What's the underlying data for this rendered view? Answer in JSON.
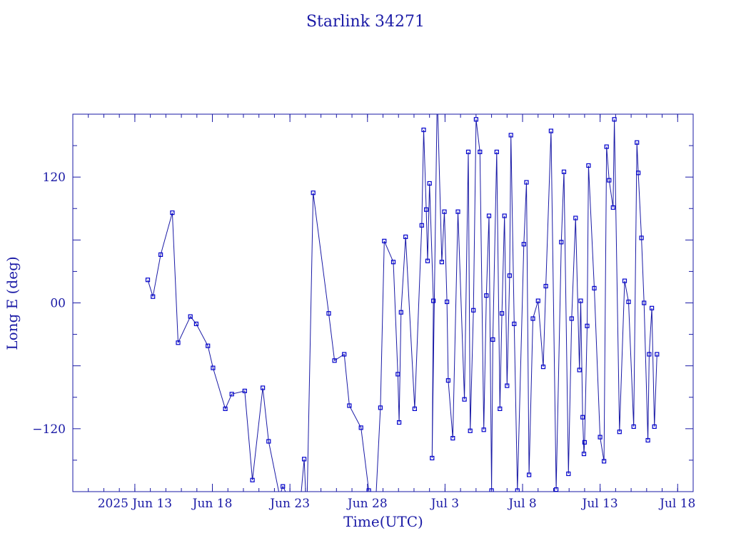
{
  "colors": {
    "axis": "#1a1aa6",
    "line": "#1a1aa6",
    "marker": "#0000cc",
    "background": "#ffffff"
  },
  "chart_data": {
    "type": "line",
    "title": "Starlink 34271",
    "xlabel": "Time(UTC)",
    "ylabel": "Long E (deg)",
    "x_unit": "date",
    "xlim": [
      "2025-06-09T00:00",
      "2025-07-19T00:00"
    ],
    "ylim": [
      -180,
      180
    ],
    "x_ticks": [
      {
        "x": "2025-06-13T00:00",
        "label": "2025 Jun 13"
      },
      {
        "x": "2025-06-18T00:00",
        "label": "Jun 18"
      },
      {
        "x": "2025-06-23T00:00",
        "label": "Jun 23"
      },
      {
        "x": "2025-06-28T00:00",
        "label": "Jun 28"
      },
      {
        "x": "2025-07-03T00:00",
        "label": "Jul 3"
      },
      {
        "x": "2025-07-08T00:00",
        "label": "Jul 8"
      },
      {
        "x": "2025-07-13T00:00",
        "label": "Jul 13"
      },
      {
        "x": "2025-07-18T00:00",
        "label": "Jul 18"
      }
    ],
    "y_ticks": [
      {
        "y": 120,
        "label": "120"
      },
      {
        "y": 0,
        "label": "00"
      },
      {
        "y": -120,
        "label": "−120"
      }
    ],
    "grid": false,
    "markers": "open squares",
    "series": [
      {
        "points": [
          [
            "2025-06-13T20:00",
            22
          ],
          [
            "2025-06-14T04:00",
            6
          ],
          [
            "2025-06-14T16:00",
            46
          ],
          [
            "2025-06-15T10:00",
            86
          ],
          [
            "2025-06-15T19:00",
            -38
          ],
          [
            "2025-06-16T14:00",
            -13
          ],
          [
            "2025-06-16T23:00",
            -20
          ],
          [
            "2025-06-17T17:00",
            -41
          ],
          [
            "2025-06-18T01:00",
            -62
          ],
          [
            "2025-06-18T20:00",
            -101
          ],
          [
            "2025-06-19T06:00",
            -87
          ],
          [
            "2025-06-20T02:00",
            -84
          ],
          [
            "2025-06-20T14:00",
            -169
          ],
          [
            "2025-06-21T06:00",
            -81
          ],
          [
            "2025-06-21T15:00",
            -132
          ],
          [
            "2025-06-22T08:00",
            -184
          ],
          [
            "2025-06-22T13:00",
            -175
          ],
          [
            "2025-06-23T14:00",
            -205
          ],
          [
            "2025-06-23T22:00",
            -149
          ],
          [
            "2025-06-24T02:00",
            -205
          ],
          [
            "2025-06-24T12:00",
            105
          ],
          [
            "2025-06-25T12:00",
            -10
          ],
          [
            "2025-06-25T21:00",
            -55
          ],
          [
            "2025-06-26T12:00",
            -49
          ],
          [
            "2025-06-26T20:00",
            -98
          ],
          [
            "2025-06-27T14:00",
            -119
          ],
          [
            "2025-06-28T02:00",
            -179
          ],
          [
            "2025-06-28T12:00",
            -200
          ],
          [
            "2025-06-28T20:00",
            -100
          ],
          [
            "2025-06-29T02:00",
            59
          ],
          [
            "2025-06-29T16:00",
            39
          ],
          [
            "2025-06-29T23:00",
            -68
          ],
          [
            "2025-06-30T01:00",
            -114
          ],
          [
            "2025-06-30T04:00",
            -9
          ],
          [
            "2025-06-30T11:00",
            63
          ],
          [
            "2025-07-01T01:00",
            -101
          ],
          [
            "2025-07-01T12:00",
            74
          ],
          [
            "2025-07-01T15:00",
            165
          ],
          [
            "2025-07-01T19:00",
            89
          ],
          [
            "2025-07-01T21:00",
            40
          ],
          [
            "2025-07-02T00:00",
            114
          ],
          [
            "2025-07-02T06:00",
            2
          ],
          [
            "2025-07-02T04:00",
            -148
          ],
          [
            "2025-07-02T12:00",
            200
          ],
          [
            "2025-07-02T19:00",
            39
          ],
          [
            "2025-07-02T23:00",
            87
          ],
          [
            "2025-07-03T03:00",
            1
          ],
          [
            "2025-07-03T05:00",
            -74
          ],
          [
            "2025-07-03T12:00",
            -129
          ],
          [
            "2025-07-03T20:00",
            87
          ],
          [
            "2025-07-04T06:00",
            -92
          ],
          [
            "2025-07-04T12:00",
            144
          ],
          [
            "2025-07-04T15:00",
            -122
          ],
          [
            "2025-07-04T20:00",
            -7
          ],
          [
            "2025-07-05T00:00",
            175
          ],
          [
            "2025-07-05T06:00",
            144
          ],
          [
            "2025-07-05T12:00",
            -121
          ],
          [
            "2025-07-05T16:00",
            7
          ],
          [
            "2025-07-05T20:00",
            83
          ],
          [
            "2025-07-06T00:00",
            -179
          ],
          [
            "2025-07-06T02:00",
            -35
          ],
          [
            "2025-07-06T08:00",
            144
          ],
          [
            "2025-07-06T13:00",
            -101
          ],
          [
            "2025-07-06T16:00",
            -10
          ],
          [
            "2025-07-06T20:00",
            83
          ],
          [
            "2025-07-07T00:00",
            -79
          ],
          [
            "2025-07-07T04:00",
            26
          ],
          [
            "2025-07-07T06:00",
            160
          ],
          [
            "2025-07-07T11:00",
            -20
          ],
          [
            "2025-07-07T16:00",
            -179
          ],
          [
            "2025-07-08T02:00",
            56
          ],
          [
            "2025-07-08T06:00",
            115
          ],
          [
            "2025-07-08T10:00",
            -164
          ],
          [
            "2025-07-08T16:00",
            -15
          ],
          [
            "2025-07-09T00:00",
            2
          ],
          [
            "2025-07-09T08:00",
            -61
          ],
          [
            "2025-07-09T12:00",
            16
          ],
          [
            "2025-07-09T20:00",
            164
          ],
          [
            "2025-07-10T04:00",
            -178
          ],
          [
            "2025-07-10T12:00",
            58
          ],
          [
            "2025-07-10T16:00",
            125
          ],
          [
            "2025-07-10T23:00",
            -163
          ],
          [
            "2025-07-11T04:00",
            -15
          ],
          [
            "2025-07-11T10:00",
            81
          ],
          [
            "2025-07-11T16:00",
            -64
          ],
          [
            "2025-07-11T18:00",
            2
          ],
          [
            "2025-07-11T21:00",
            -109
          ],
          [
            "2025-07-11T23:00",
            -144
          ],
          [
            "2025-07-12T00:00",
            -133
          ],
          [
            "2025-07-12T04:00",
            -22
          ],
          [
            "2025-07-12T06:00",
            131
          ],
          [
            "2025-07-12T15:00",
            14
          ],
          [
            "2025-07-13T00:00",
            -128
          ],
          [
            "2025-07-13T06:00",
            -151
          ],
          [
            "2025-07-13T10:00",
            149
          ],
          [
            "2025-07-13T14:00",
            117
          ],
          [
            "2025-07-13T20:00",
            91
          ],
          [
            "2025-07-13T22:00",
            175
          ],
          [
            "2025-07-14T06:00",
            -123
          ],
          [
            "2025-07-14T14:00",
            21
          ],
          [
            "2025-07-14T20:00",
            1
          ],
          [
            "2025-07-15T04:00",
            -118
          ],
          [
            "2025-07-15T09:00",
            153
          ],
          [
            "2025-07-15T11:00",
            124
          ],
          [
            "2025-07-15T16:00",
            62
          ],
          [
            "2025-07-15T20:00",
            0
          ],
          [
            "2025-07-16T02:00",
            -131
          ],
          [
            "2025-07-16T04:00",
            -49
          ],
          [
            "2025-07-16T08:00",
            -5
          ],
          [
            "2025-07-16T12:00",
            -118
          ],
          [
            "2025-07-16T16:00",
            -49
          ]
        ]
      }
    ]
  }
}
